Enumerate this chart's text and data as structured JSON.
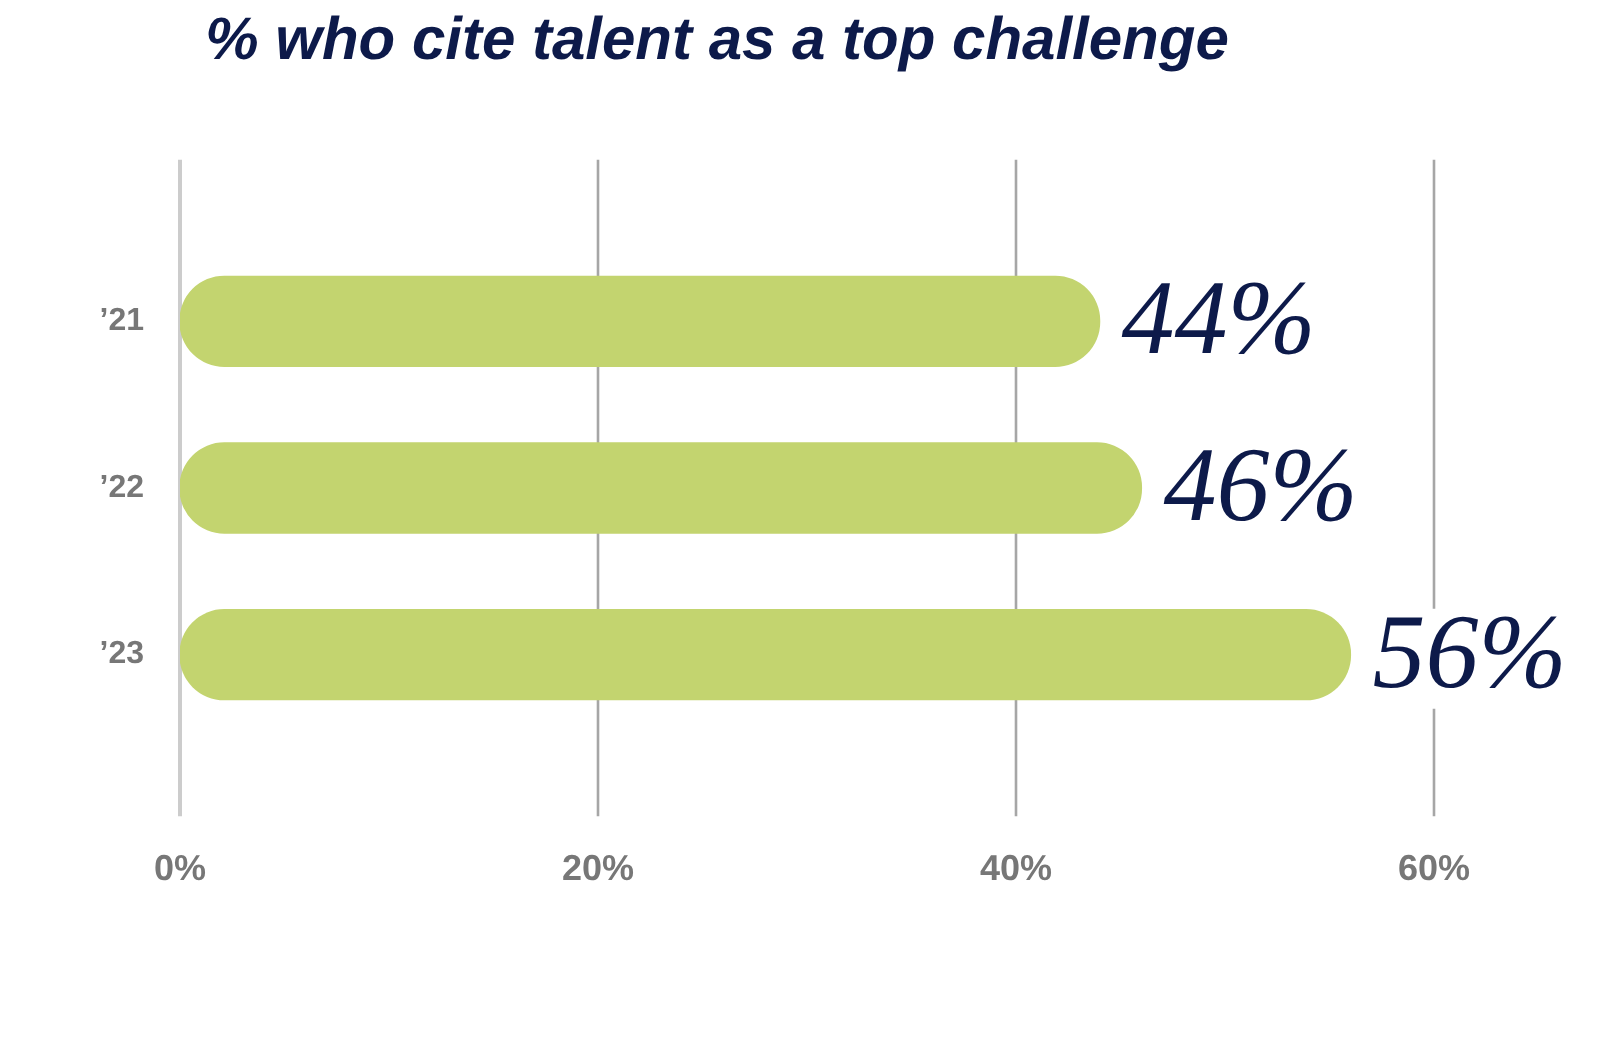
{
  "chart_data": {
    "type": "bar",
    "orientation": "horizontal",
    "title": "% who cite talent as a top challenge",
    "categories": [
      "’21",
      "’22",
      "’23"
    ],
    "values": [
      44,
      46,
      56
    ],
    "color": "#c3d46f",
    "value_labels": [
      "44%",
      "46%",
      "56%"
    ],
    "xlim": [
      0,
      60
    ],
    "xticks": [
      {
        "value": 0,
        "label": "0%"
      },
      {
        "value": 20,
        "label": "20%"
      },
      {
        "value": 40,
        "label": "40%"
      },
      {
        "value": 60,
        "label": "60%"
      }
    ],
    "grid": "x",
    "legend": false
  }
}
